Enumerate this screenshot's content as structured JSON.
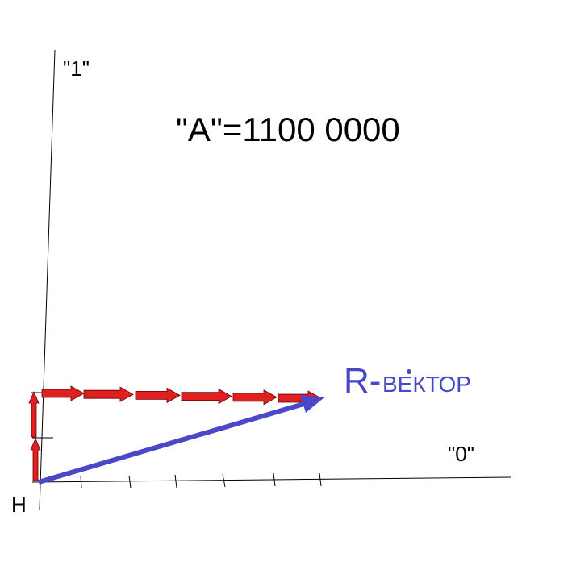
{
  "labels": {
    "one": "\"1\"",
    "zero": "\"0\"",
    "origin": "H",
    "title": "\"A\"=1100 0000",
    "vector_prefix": "R-",
    "vector_word": "ВЕКТОР"
  }
}
